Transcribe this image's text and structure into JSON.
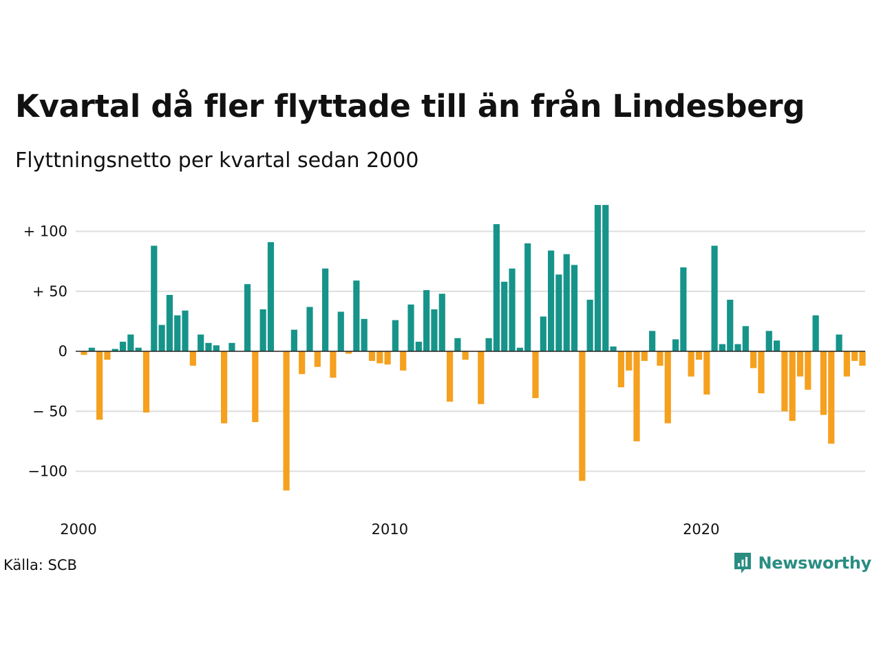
{
  "title": "Kvartal då fler flyttade till än från Lindesberg",
  "subtitle": "Flyttningsnetto per kvartal sedan 2000",
  "source": "Källa: SCB",
  "brand": {
    "name": "Newsworthy",
    "icon": "newsworthy-logo-icon",
    "color": "#2a8d82"
  },
  "colors": {
    "positive": "#16948a",
    "negative": "#f5a01e",
    "grid": "#dedede",
    "zero_line": "#222222"
  },
  "chart_data": {
    "type": "bar",
    "x_start": "2000 Q1",
    "frequency": "quarter",
    "xticks": [
      {
        "label": "2000",
        "index": 0
      },
      {
        "label": "2010",
        "index": 40
      },
      {
        "label": "2020",
        "index": 80
      }
    ],
    "yticks": [
      {
        "value": 100,
        "label": "+ 100"
      },
      {
        "value": 50,
        "label": "+  50"
      },
      {
        "value": 0,
        "label": "0"
      },
      {
        "value": -50,
        "label": "− 50"
      },
      {
        "value": -100,
        "label": "−100"
      }
    ],
    "ylim": [
      -120,
      122
    ],
    "grid": true,
    "legend": "none",
    "values": [
      -3,
      3,
      -57,
      -7,
      2,
      8,
      14,
      3,
      -51,
      88,
      22,
      47,
      30,
      34,
      -12,
      14,
      7,
      5,
      -60,
      7,
      0,
      56,
      -59,
      35,
      91,
      0,
      -116,
      18,
      -19,
      37,
      -13,
      69,
      -22,
      33,
      -2,
      59,
      27,
      -8,
      -10,
      -11,
      26,
      -16,
      39,
      8,
      51,
      35,
      48,
      -42,
      11,
      -7,
      0,
      -44,
      11,
      106,
      58,
      69,
      3,
      90,
      -39,
      29,
      84,
      64,
      81,
      72,
      -108,
      43,
      122,
      122,
      4,
      -30,
      -16,
      -75,
      -8,
      17,
      -12,
      -60,
      10,
      70,
      -21,
      -7,
      -36,
      88,
      6,
      43,
      6,
      21,
      -14,
      -35,
      17,
      9,
      -50,
      -58,
      -21,
      -32,
      30,
      -53,
      -77,
      14,
      -21,
      -8,
      -12
    ]
  }
}
